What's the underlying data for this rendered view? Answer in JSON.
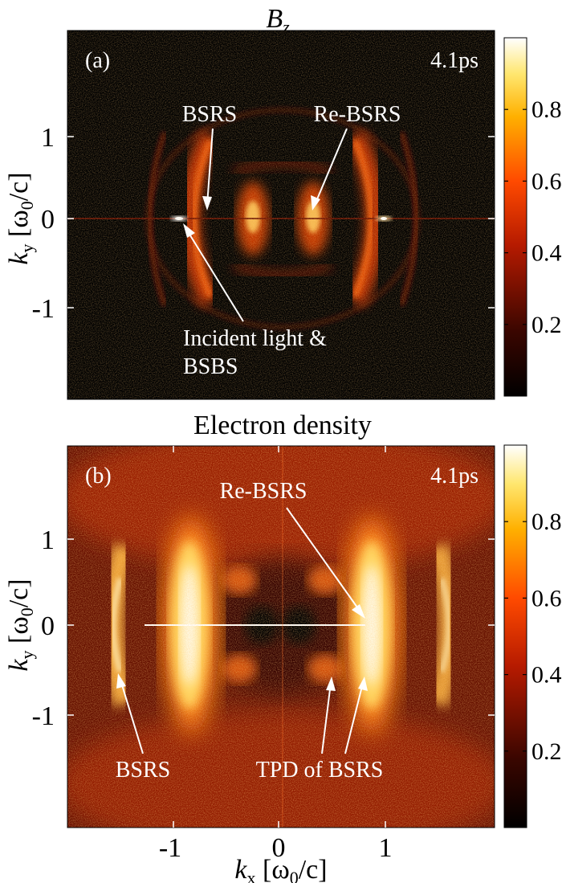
{
  "chart_data": [
    {
      "type": "heatmap",
      "panel_label": "(a)",
      "title_main": "B",
      "title_sub": "z",
      "time": "4.1ps",
      "xlim": [
        -2,
        2
      ],
      "ylim": [
        -2,
        2
      ],
      "ytick_labels": [
        "1",
        "0",
        "-1"
      ],
      "ylabel_main": "k",
      "ylabel_sub": "y",
      "ylabel_unit_open": " [ω",
      "ylabel_unit_sub": "0",
      "ylabel_unit_close": "/c]",
      "colorbar": {
        "range": [
          0,
          1
        ],
        "tick_labels": [
          "0.8",
          "0.6",
          "0.4",
          "0.2"
        ],
        "ticks": [
          0.8,
          0.6,
          0.4,
          0.2
        ]
      },
      "annotations": [
        {
          "label": "BSRS",
          "target": [
            -0.65,
            0.05
          ]
        },
        {
          "label": "Re-BSRS",
          "target": [
            0.45,
            0.05
          ]
        },
        {
          "label": "Incident light &",
          "label2": "BSBS",
          "target": [
            -0.95,
            0.0
          ]
        }
      ],
      "features": [
        {
          "name": "inner-ring",
          "radius": 0.35,
          "intensity": 0.9
        },
        {
          "name": "middle-ring",
          "radius": 0.7,
          "intensity": 0.6
        },
        {
          "name": "outer-ring",
          "radius": 1.15,
          "intensity": 0.35
        },
        {
          "name": "axis-spot",
          "x": -0.95,
          "y": 0,
          "intensity": 1.0
        },
        {
          "name": "axis-spot",
          "x": 0.95,
          "y": 0,
          "intensity": 0.9
        }
      ]
    },
    {
      "type": "heatmap",
      "panel_label": "(b)",
      "title_main": "Electron density",
      "time": "4.1ps",
      "xlim": [
        -2,
        2
      ],
      "ylim": [
        -2,
        2
      ],
      "ytick_labels": [
        "1",
        "0",
        "-1"
      ],
      "xtick_labels": [
        "-1",
        "0",
        "1"
      ],
      "ylabel_main": "k",
      "ylabel_sub": "y",
      "ylabel_unit_open": " [ω",
      "ylabel_unit_sub": "0",
      "ylabel_unit_close": "/c]",
      "xlabel_main": "k",
      "xlabel_sub": "x",
      "xlabel_unit_open": " [ω",
      "xlabel_unit_sub": "0",
      "xlabel_unit_close": "/c]",
      "colorbar": {
        "range": [
          0,
          1
        ],
        "tick_labels": [
          "0.8",
          "0.6",
          "0.4",
          "0.2"
        ],
        "ticks": [
          0.8,
          0.6,
          0.4,
          0.2
        ]
      },
      "annotations": [
        {
          "label": "Re-BSRS",
          "target": [
            0.75,
            0.05
          ]
        },
        {
          "label": "BSRS",
          "target": [
            -1.6,
            -0.3
          ]
        },
        {
          "label": "TPD of BSRS",
          "target": [
            0.3,
            -0.35
          ]
        }
      ],
      "features": [
        {
          "name": "central-lobe",
          "x": -0.9,
          "y": 0,
          "intensity": 1.0
        },
        {
          "name": "central-lobe",
          "x": 0.85,
          "y": 0,
          "intensity": 1.0
        },
        {
          "name": "outer-lobe",
          "x": -1.6,
          "y": 0,
          "intensity": 0.75
        },
        {
          "name": "outer-lobe",
          "x": 1.6,
          "y": 0,
          "intensity": 0.7
        },
        {
          "name": "tpd-spot",
          "x": -0.45,
          "y": 0.35,
          "intensity": 0.6
        },
        {
          "name": "tpd-spot",
          "x": 0.45,
          "y": 0.35,
          "intensity": 0.6
        },
        {
          "name": "tpd-spot",
          "x": -0.45,
          "y": -0.35,
          "intensity": 0.6
        },
        {
          "name": "tpd-spot",
          "x": 0.45,
          "y": -0.35,
          "intensity": 0.6
        }
      ]
    }
  ],
  "colors": {
    "background": "#000000",
    "hot_dark": "#3a0600",
    "hot_mid": "#d52a00",
    "hot_light": "#ffd23a",
    "hot_white": "#fffff0"
  }
}
